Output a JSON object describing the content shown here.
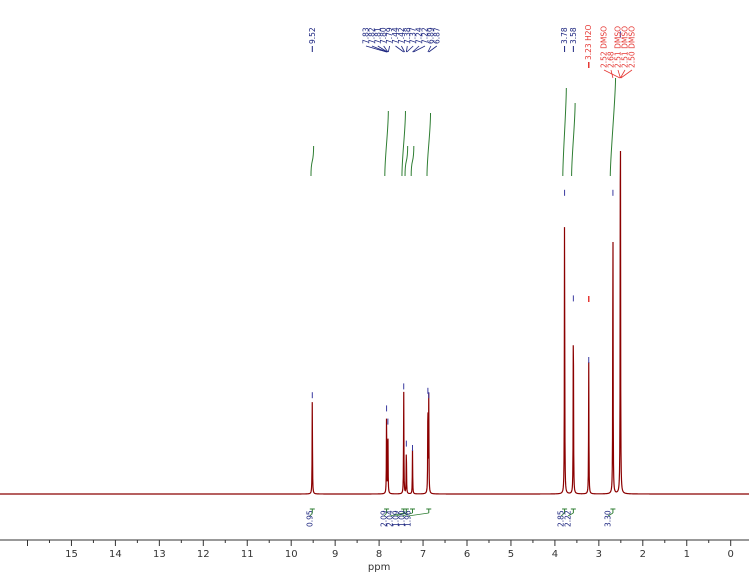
{
  "chart_data": {
    "type": "line",
    "title": "",
    "xlabel": "ppm",
    "ylabel": "",
    "xlim": [
      16,
      0
    ],
    "x_direction": "reversed",
    "x_ticks": [
      15,
      14,
      13,
      12,
      11,
      10,
      9,
      8,
      7,
      6,
      5,
      4,
      3,
      2,
      1,
      0
    ],
    "grid": false,
    "legend": "none",
    "series": [
      {
        "peaks": [
          {
            "x": 9.52,
            "y": 0.22
          },
          {
            "x": 7.83,
            "y": 0.19
          },
          {
            "x": 7.8,
            "y": 0.16
          },
          {
            "x": 7.44,
            "y": 0.24
          },
          {
            "x": 7.38,
            "y": 0.11
          },
          {
            "x": 7.24,
            "y": 0.1
          },
          {
            "x": 6.89,
            "y": 0.23
          },
          {
            "x": 6.87,
            "y": 0.22
          },
          {
            "x": 3.78,
            "y": 0.68
          },
          {
            "x": 3.58,
            "y": 0.44
          },
          {
            "x": 3.23,
            "y": 0.3
          },
          {
            "x": 2.68,
            "y": 0.68
          },
          {
            "x": 2.51,
            "y": 1.04
          }
        ]
      }
    ],
    "peak_labels_blue": [
      {
        "group": "s1",
        "labels": [
          "9.52"
        ]
      },
      {
        "group": "m1",
        "labels": [
          "7.83",
          "7.82",
          "7.81",
          "7.80",
          "7.79",
          "7.44",
          "7.42",
          "7.38",
          "7.37",
          "7.24",
          "7.22",
          "6.89",
          "6.87"
        ]
      },
      {
        "group": "s2",
        "labels": [
          "3.78"
        ]
      },
      {
        "group": "s3",
        "labels": [
          "3.58"
        ]
      }
    ],
    "peak_labels_red": [
      "3.23 H2O",
      "2.52 DMSO",
      "2.68",
      "2.51 DMSO",
      "2.51 DMSO",
      "2.50 DMSO"
    ],
    "integrals": [
      {
        "label": "0.95"
      },
      {
        "label": "2.09"
      },
      {
        "label": "2.04"
      },
      {
        "label": "1.09"
      },
      {
        "label": "1.00"
      },
      {
        "label": "1.96"
      },
      {
        "label": "2.85"
      },
      {
        "label": "2.22"
      },
      {
        "label": "3.30"
      }
    ],
    "colors": {
      "spectrum": "#8b0000",
      "peak_labels": "#1a237e",
      "solvent_labels": "#e53935",
      "integral_curve": "#2e7d32",
      "integral_labels": "#1a237e",
      "axis": "#333333"
    }
  }
}
